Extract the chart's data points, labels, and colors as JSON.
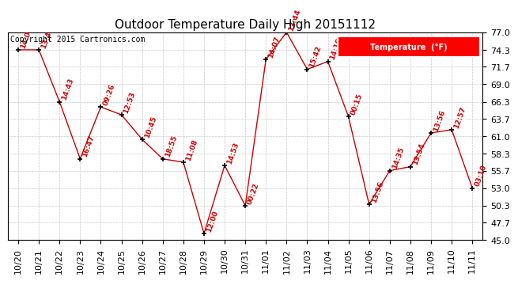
{
  "title": "Outdoor Temperature Daily High 20151112",
  "copyright": "Copyright 2015 Cartronics.com",
  "legend_label": "Temperature  (°F)",
  "ylim": [
    45.0,
    77.0
  ],
  "yticks": [
    45.0,
    47.7,
    50.3,
    53.0,
    55.7,
    58.3,
    61.0,
    63.7,
    66.3,
    69.0,
    71.7,
    74.3,
    77.0
  ],
  "dates": [
    "10/20",
    "10/21",
    "10/22",
    "10/23",
    "10/24",
    "10/25",
    "10/26",
    "10/27",
    "10/28",
    "10/29",
    "10/30",
    "10/31",
    "11/01",
    "11/02",
    "11/03",
    "11/04",
    "11/05",
    "11/06",
    "11/07",
    "11/08",
    "11/09",
    "11/10",
    "11/11"
  ],
  "temperatures": [
    74.3,
    74.3,
    66.3,
    57.5,
    65.5,
    64.3,
    60.5,
    57.5,
    57.0,
    46.0,
    56.5,
    50.3,
    72.8,
    77.0,
    71.3,
    72.5,
    64.0,
    50.5,
    55.7,
    56.3,
    61.5,
    62.0,
    53.0
  ],
  "time_labels": [
    "14:0",
    "13:4",
    "14:43",
    "16:47",
    "09:26",
    "12:53",
    "10:45",
    "18:55",
    "11:08",
    "12:00",
    "14:53",
    "00:22",
    "14:07",
    "13:44",
    "15:42",
    "14:19",
    "00:15",
    "13:56",
    "14:35",
    "13:54",
    "13:56",
    "12:57",
    "03:10"
  ],
  "line_color": "#cc0000",
  "marker_color": "#000000",
  "label_color": "#cc0000",
  "bg_color": "#ffffff",
  "grid_color": "#bbbbbb",
  "title_fontsize": 11,
  "tick_fontsize": 8,
  "copyright_fontsize": 7,
  "label_fontsize": 6.5
}
